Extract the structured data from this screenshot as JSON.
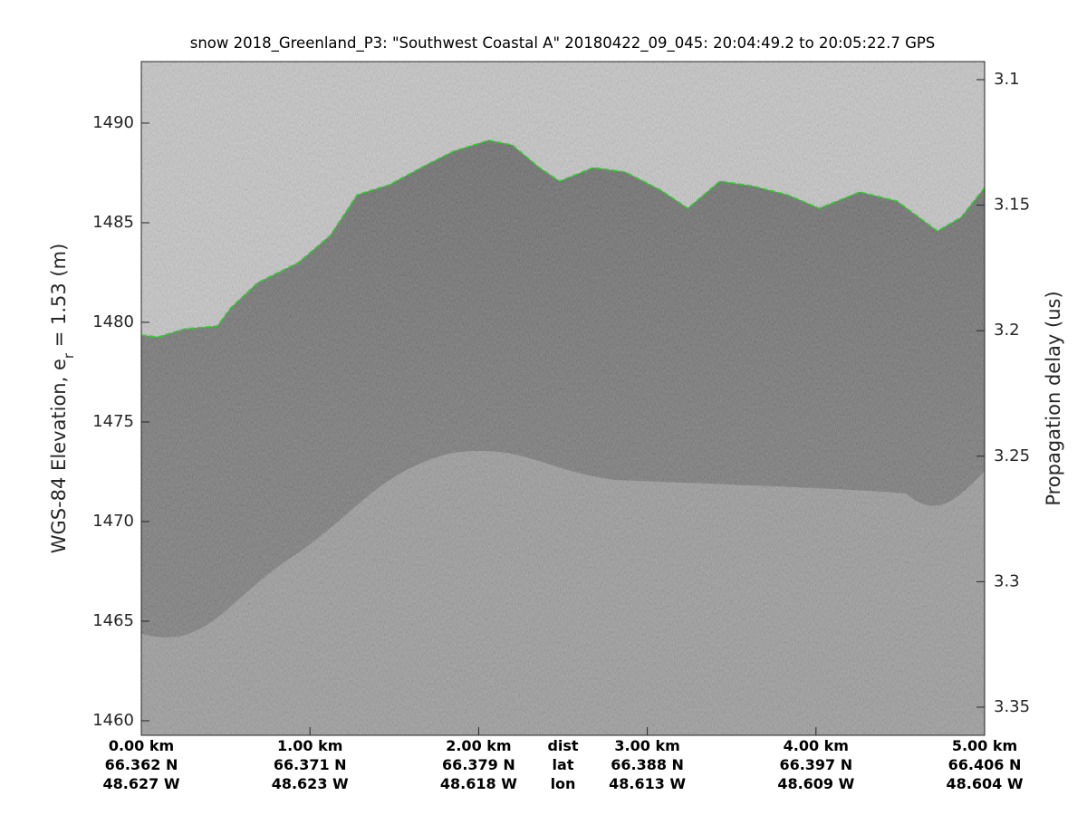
{
  "chart_data": {
    "type": "echogram",
    "title": "snow 2018_Greenland_P3: \"Southwest Coastal A\"  20180422_09_045: 20:04:49.2 to 20:05:22.7 GPS",
    "ylabel": "WGS-84 Elevation, e",
    "ylabel_sub": "r",
    "ylabel_rest": " = 1.53 (m)",
    "y2label": "Propagation delay (us)",
    "xlim": [
      0,
      5
    ],
    "ylim": [
      1459.27,
      1493.09
    ],
    "y2lim": [
      3.3612,
      3.0928
    ],
    "yticks": [
      1460,
      1465,
      1470,
      1475,
      1480,
      1485,
      1490
    ],
    "y2ticks": [
      3.1,
      3.15,
      3.2,
      3.25,
      3.3,
      3.35
    ],
    "xticks": [
      {
        "value": 0,
        "label": "0.00 km"
      },
      {
        "value": 1,
        "label": "1.00 km"
      },
      {
        "value": 2,
        "label": "2.00 km"
      },
      {
        "value": 3,
        "label": "3.00 km"
      },
      {
        "value": 4,
        "label": "4.00 km"
      },
      {
        "value": 5,
        "label": "5.00 km"
      }
    ],
    "xtick_lat": [
      "66.362 N",
      "66.371 N",
      "66.379 N",
      "66.388 N",
      "66.397 N",
      "66.406 N"
    ],
    "xtick_lon": [
      "48.627 W",
      "48.623 W",
      "48.618 W",
      "48.613 W",
      "48.609 W",
      "48.604 W"
    ],
    "xtick_row_names": [
      "dist",
      "lat",
      "lon"
    ],
    "surface": {
      "color": "#22dd22",
      "x": [
        0,
        0.1,
        0.26,
        0.45,
        0.53,
        0.69,
        0.93,
        1.12,
        1.28,
        1.47,
        1.69,
        1.85,
        2.06,
        2.2,
        2.36,
        2.48,
        2.68,
        2.87,
        3.08,
        3.24,
        3.43,
        3.62,
        3.83,
        4.02,
        4.26,
        4.48,
        4.72,
        4.86,
        5.0
      ],
      "values": [
        1479.36,
        1479.27,
        1479.68,
        1479.82,
        1480.73,
        1482.0,
        1483.0,
        1484.36,
        1486.41,
        1486.91,
        1487.91,
        1488.59,
        1489.14,
        1488.91,
        1487.77,
        1487.09,
        1487.77,
        1487.55,
        1486.64,
        1485.73,
        1487.09,
        1486.86,
        1486.41,
        1485.73,
        1486.55,
        1486.09,
        1484.59,
        1485.27,
        1486.77
      ]
    }
  }
}
